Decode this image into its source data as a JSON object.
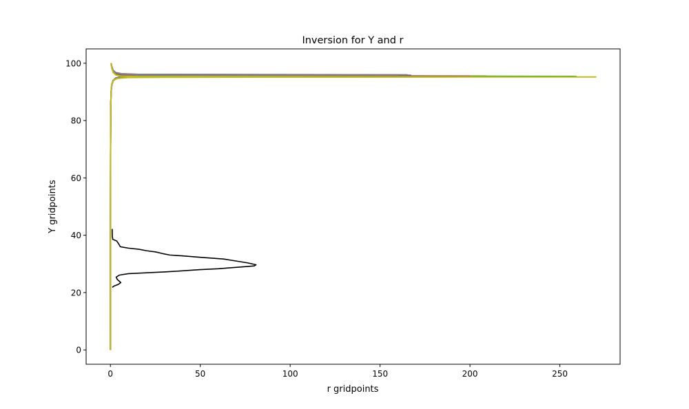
{
  "chart_data": {
    "type": "line",
    "title": "Inversion for Y and r",
    "xlabel": "r gridpoints",
    "ylabel": "Y gridpoints",
    "xlim": [
      -13.5,
      283.5
    ],
    "ylim": [
      -5,
      105
    ],
    "xticks": [
      0,
      50,
      100,
      150,
      200,
      250
    ],
    "yticks": [
      0,
      20,
      40,
      60,
      80,
      100
    ],
    "grid": false,
    "legend": "none",
    "series": [
      {
        "color": "#000000",
        "points": [
          [
            1.0,
            42.2
          ],
          [
            1.1,
            39.5
          ],
          [
            1.3,
            38.6
          ],
          [
            3.5,
            38.0
          ],
          [
            4.6,
            37.0
          ],
          [
            5.5,
            36.0
          ],
          [
            10,
            35.5
          ],
          [
            16,
            35.1
          ],
          [
            20,
            34.6
          ],
          [
            25,
            34.2
          ],
          [
            29,
            33.6
          ],
          [
            33,
            33.1
          ],
          [
            40,
            32.8
          ],
          [
            50,
            32.3
          ],
          [
            63,
            31.7
          ],
          [
            70,
            31.0
          ],
          [
            76,
            30.4
          ],
          [
            81,
            29.7
          ],
          [
            80,
            29.3
          ],
          [
            76,
            29.1
          ],
          [
            66,
            28.6
          ],
          [
            60,
            28.3
          ],
          [
            50,
            28.0
          ],
          [
            38,
            27.5
          ],
          [
            30,
            27.2
          ],
          [
            20,
            26.9
          ],
          [
            10,
            26.6
          ],
          [
            5,
            26.1
          ],
          [
            3.2,
            25.4
          ],
          [
            3.8,
            24.6
          ],
          [
            5.8,
            23.5
          ],
          [
            4.5,
            22.9
          ],
          [
            2.1,
            22.3
          ],
          [
            1.0,
            21.8
          ]
        ]
      },
      {
        "color": "#ff7f0e",
        "points": [
          [
            0.02,
            0
          ],
          [
            0.05,
            40
          ],
          [
            0.1,
            70
          ],
          [
            0.2,
            85
          ],
          [
            0.4,
            90
          ],
          [
            0.8,
            92.5
          ],
          [
            1.5,
            93.8
          ],
          [
            3,
            94.6
          ],
          [
            6,
            95.0
          ],
          [
            15,
            95.2
          ],
          [
            40,
            95.35
          ],
          [
            100,
            95.45
          ],
          [
            150,
            95.5
          ],
          [
            209,
            95.52
          ],
          [
            15,
            95.72
          ],
          [
            6,
            95.9
          ],
          [
            3,
            96.3
          ],
          [
            1.5,
            97.2
          ],
          [
            0.8,
            98.5
          ],
          [
            0.4,
            100
          ]
        ]
      },
      {
        "color": "#2ca02c",
        "points": [
          [
            0.02,
            0
          ],
          [
            0.05,
            40
          ],
          [
            0.1,
            70
          ],
          [
            0.2,
            85
          ],
          [
            0.4,
            90
          ],
          [
            0.8,
            92.5
          ],
          [
            1.5,
            93.8
          ],
          [
            3,
            94.7
          ],
          [
            6,
            95.0
          ],
          [
            15,
            95.2
          ],
          [
            40,
            95.3
          ],
          [
            100,
            95.35
          ],
          [
            200,
            95.38
          ],
          [
            259,
            95.4
          ],
          [
            15,
            95.62
          ],
          [
            6,
            95.8
          ],
          [
            3,
            96.2
          ],
          [
            1.5,
            97.1
          ],
          [
            0.8,
            98.4
          ],
          [
            0.4,
            100
          ]
        ]
      },
      {
        "color": "#d62728",
        "points": [
          [
            0.02,
            0
          ],
          [
            0.05,
            40
          ],
          [
            0.1,
            70
          ],
          [
            0.2,
            85
          ],
          [
            0.4,
            90
          ],
          [
            0.8,
            92.6
          ],
          [
            1.5,
            93.9
          ],
          [
            3,
            94.7
          ],
          [
            6,
            95.1
          ],
          [
            15,
            95.35
          ],
          [
            40,
            95.55
          ],
          [
            100,
            95.65
          ],
          [
            150,
            95.7
          ],
          [
            166,
            95.72
          ],
          [
            15,
            95.92
          ],
          [
            6,
            96.1
          ],
          [
            3,
            96.5
          ],
          [
            1.5,
            97.3
          ],
          [
            0.8,
            98.6
          ],
          [
            0.4,
            100
          ]
        ]
      },
      {
        "color": "#9467bd",
        "points": [
          [
            0.02,
            0
          ],
          [
            0.05,
            40
          ],
          [
            0.1,
            70
          ],
          [
            0.2,
            85
          ],
          [
            0.4,
            90
          ],
          [
            0.8,
            92.6
          ],
          [
            1.5,
            93.9
          ],
          [
            3,
            94.8
          ],
          [
            6,
            95.2
          ],
          [
            15,
            95.45
          ],
          [
            40,
            95.65
          ],
          [
            100,
            95.75
          ],
          [
            150,
            95.8
          ],
          [
            167,
            95.82
          ],
          [
            15,
            96.02
          ],
          [
            6,
            96.2
          ],
          [
            3,
            96.6
          ],
          [
            1.5,
            97.4
          ],
          [
            0.8,
            98.7
          ],
          [
            0.4,
            100
          ]
        ]
      },
      {
        "color": "#8c564b",
        "points": [
          [
            0.02,
            0
          ],
          [
            0.05,
            40
          ],
          [
            0.1,
            70
          ],
          [
            0.2,
            85
          ],
          [
            0.4,
            90
          ],
          [
            0.8,
            92.5
          ],
          [
            1.5,
            93.8
          ],
          [
            3,
            94.6
          ],
          [
            6,
            95.0
          ],
          [
            15,
            95.2
          ],
          [
            40,
            95.35
          ],
          [
            100,
            95.45
          ],
          [
            150,
            95.5
          ],
          [
            200,
            95.5
          ],
          [
            15,
            95.75
          ],
          [
            6,
            95.95
          ],
          [
            3,
            96.3
          ],
          [
            1.5,
            97.2
          ],
          [
            0.8,
            98.5
          ],
          [
            0.4,
            100
          ]
        ]
      },
      {
        "color": "#e377c2",
        "points": [
          [
            0.02,
            0
          ],
          [
            0.05,
            40
          ],
          [
            0.1,
            70
          ],
          [
            0.2,
            85
          ],
          [
            0.4,
            90
          ],
          [
            0.8,
            92.7
          ],
          [
            1.5,
            94.0
          ],
          [
            3,
            94.8
          ],
          [
            6,
            95.3
          ],
          [
            15,
            95.55
          ],
          [
            40,
            95.75
          ],
          [
            100,
            95.85
          ],
          [
            140,
            95.9
          ],
          [
            160,
            95.9
          ],
          [
            15,
            96.1
          ],
          [
            6,
            96.3
          ],
          [
            3,
            96.7
          ],
          [
            1.5,
            97.5
          ],
          [
            0.8,
            98.8
          ],
          [
            0.4,
            100
          ]
        ]
      },
      {
        "color": "#7f7f7f",
        "points": [
          [
            0.02,
            0
          ],
          [
            0.05,
            40
          ],
          [
            0.1,
            70
          ],
          [
            0.2,
            85
          ],
          [
            0.4,
            90
          ],
          [
            0.8,
            92.7
          ],
          [
            1.5,
            94.0
          ],
          [
            3,
            94.9
          ],
          [
            6,
            95.35
          ],
          [
            15,
            95.6
          ],
          [
            40,
            95.8
          ],
          [
            100,
            95.9
          ],
          [
            150,
            95.95
          ],
          [
            165,
            95.95
          ],
          [
            15,
            96.15
          ],
          [
            6,
            96.35
          ],
          [
            3,
            96.75
          ],
          [
            1.5,
            97.55
          ],
          [
            0.8,
            98.8
          ],
          [
            0.4,
            100
          ]
        ]
      },
      {
        "color": "#bcbd22",
        "points": [
          [
            0.02,
            0
          ],
          [
            0.05,
            40
          ],
          [
            0.1,
            70
          ],
          [
            0.2,
            85
          ],
          [
            0.4,
            90
          ],
          [
            0.6,
            92
          ],
          [
            1.0,
            93.2
          ],
          [
            2,
            94.2
          ],
          [
            4,
            94.7
          ],
          [
            10,
            95.0
          ],
          [
            30,
            95.1
          ],
          [
            100,
            95.15
          ],
          [
            200,
            95.2
          ],
          [
            270,
            95.2
          ],
          [
            15,
            95.35
          ],
          [
            6,
            95.5
          ],
          [
            3,
            95.9
          ],
          [
            1.5,
            96.8
          ],
          [
            0.8,
            98.2
          ],
          [
            0.4,
            100
          ]
        ]
      }
    ]
  }
}
